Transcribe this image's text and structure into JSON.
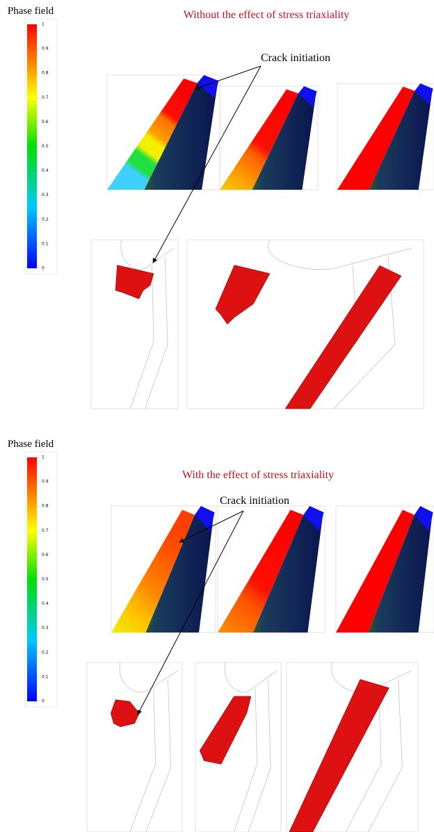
{
  "panels": [
    {
      "colorbar": {
        "title": "Phase field",
        "ticks": [
          0,
          0.1,
          0.2,
          0.3,
          0.4,
          0.5,
          0.6,
          0.7,
          0.8,
          0.9,
          1
        ]
      },
      "title": "Without the effect of stress triaxiality",
      "annotation": "Crack initiation"
    },
    {
      "colorbar": {
        "title": "Phase field",
        "ticks": [
          0,
          0.1,
          0.2,
          0.3,
          0.4,
          0.5,
          0.6,
          0.7,
          0.8,
          0.9,
          1
        ]
      },
      "title": "With the effect of stress triaxiality",
      "annotation": "Crack initiation"
    }
  ]
}
